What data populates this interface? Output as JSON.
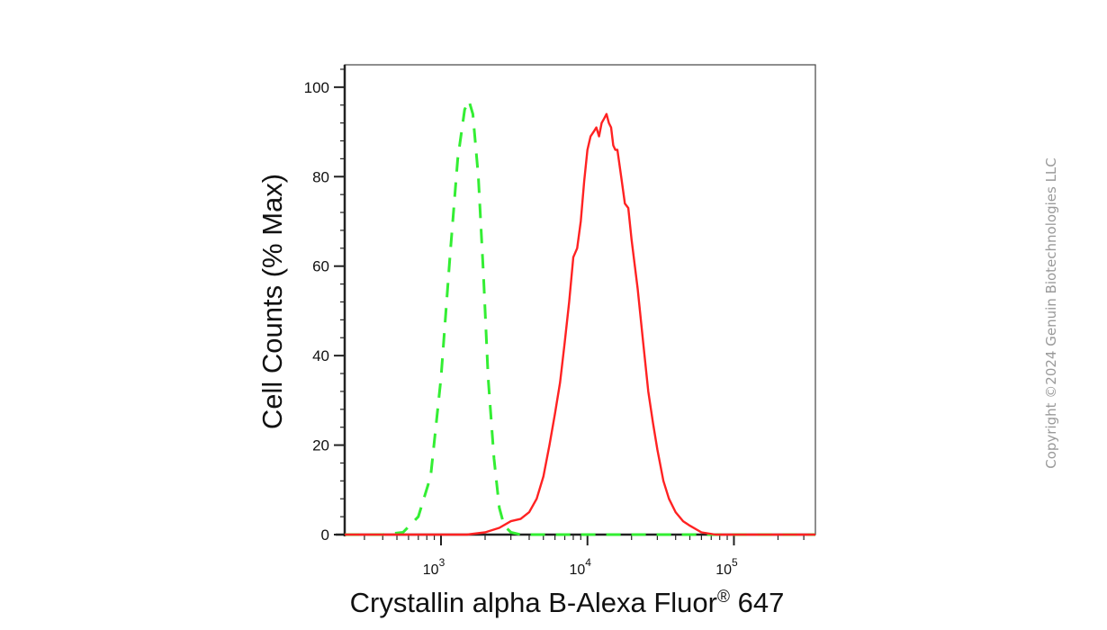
{
  "copyright": "Copyright ©2024 Genuin Biotechnologies LLC",
  "chart_data": {
    "type": "line",
    "title": "",
    "xlabel": "Crystallin alpha B-Alexa Fluor",
    "xlabel_sup": "®",
    "xlabel_tail": " 647",
    "ylabel": "Cell Counts (% Max)",
    "xscale": "log",
    "xlim": [
      220,
      360000
    ],
    "ylim": [
      0,
      105
    ],
    "y_ticks": [
      0,
      20,
      40,
      60,
      80,
      100
    ],
    "x_ticks": [
      {
        "value": 1000,
        "base": "10",
        "exp": "3"
      },
      {
        "value": 10000,
        "base": "10",
        "exp": "4"
      },
      {
        "value": 100000,
        "base": "10",
        "exp": "5"
      }
    ],
    "grid": false,
    "series": [
      {
        "color": "#33ee33",
        "style": "dashed",
        "x": [
          220,
          400,
          550,
          700,
          850,
          1000,
          1150,
          1300,
          1450,
          1550,
          1650,
          1800,
          1950,
          2100,
          2300,
          2500,
          2700,
          3000,
          3500,
          5000,
          10000,
          30000,
          100000,
          360000
        ],
        "y": [
          0,
          0,
          0.5,
          4,
          13,
          35,
          62,
          84,
          95,
          97,
          94,
          80,
          58,
          35,
          17,
          6,
          2,
          0.5,
          0,
          0,
          0,
          0,
          0,
          0
        ]
      },
      {
        "color": "#ff2222",
        "style": "solid",
        "x": [
          220,
          1500,
          2000,
          2500,
          3000,
          3500,
          4000,
          4500,
          5000,
          5500,
          6000,
          6500,
          7000,
          7500,
          8000,
          8500,
          9000,
          9500,
          10000,
          10500,
          11000,
          11500,
          12000,
          12500,
          13000,
          13500,
          14000,
          14500,
          15000,
          15500,
          16000,
          17000,
          18000,
          19000,
          20000,
          22000,
          24000,
          26000,
          28000,
          30000,
          33000,
          36000,
          40000,
          45000,
          50000,
          60000,
          75000,
          100000,
          360000
        ],
        "y": [
          0,
          0,
          0.5,
          1.5,
          3,
          3.5,
          5,
          8,
          13,
          20,
          27,
          34,
          43,
          52,
          62,
          64,
          70,
          79,
          86,
          89,
          90,
          91,
          89,
          92,
          93,
          94,
          92,
          91,
          87,
          86,
          86,
          80,
          74,
          73,
          66,
          55,
          43,
          32,
          25,
          19,
          12,
          8,
          5,
          3,
          2,
          0.5,
          0,
          0,
          0
        ]
      }
    ]
  }
}
